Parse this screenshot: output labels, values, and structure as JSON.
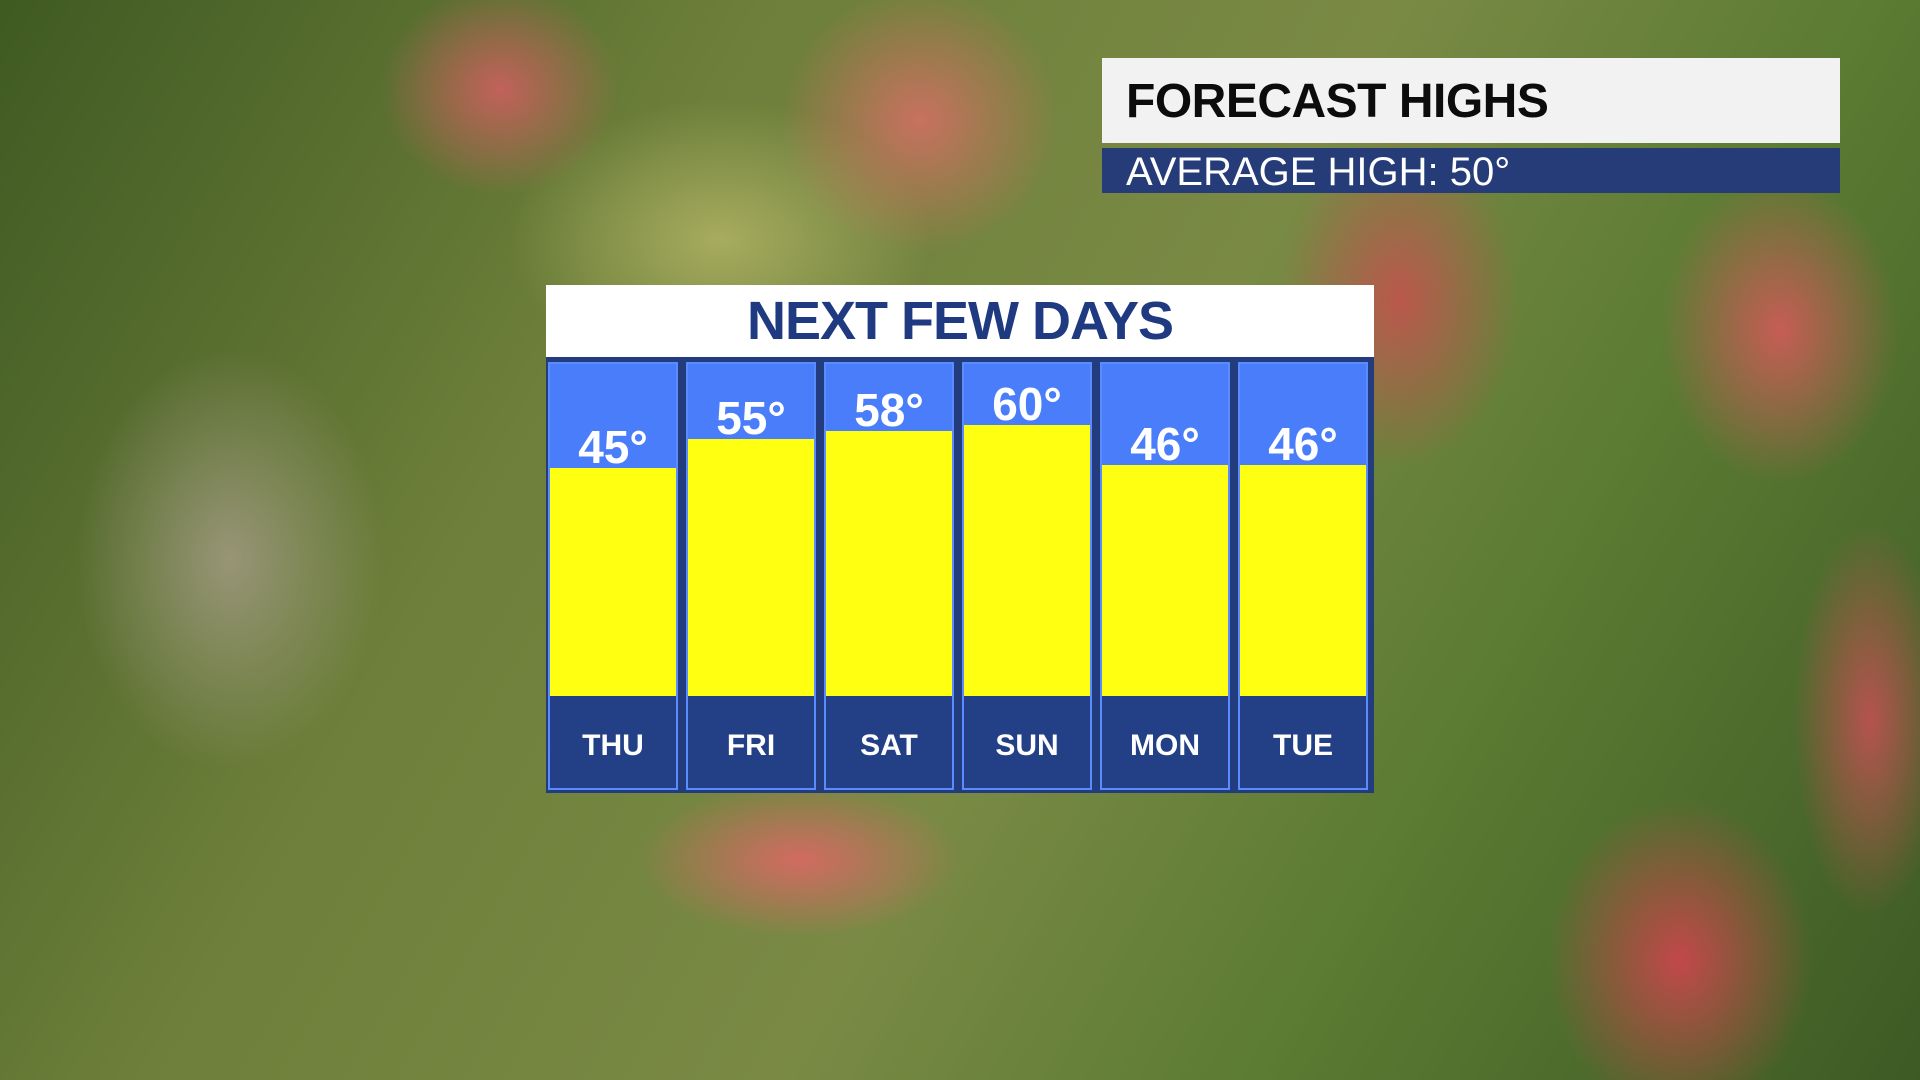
{
  "header": {
    "title": "FORECAST HIGHS",
    "subtitle": "AVERAGE HIGH: 50°"
  },
  "chart_data": {
    "type": "bar",
    "title": "NEXT FEW DAYS",
    "categories": [
      "THU",
      "FRI",
      "SAT",
      "SUN",
      "MON",
      "TUE"
    ],
    "values": [
      45,
      55,
      58,
      60,
      46,
      46
    ],
    "labels": [
      "45°",
      "55°",
      "58°",
      "60°",
      "46°",
      "46°"
    ],
    "colors": {
      "bar": "#ffff12",
      "column": "#4a7dfa",
      "day_band": "#233f85",
      "title": "#1f3a80"
    }
  }
}
